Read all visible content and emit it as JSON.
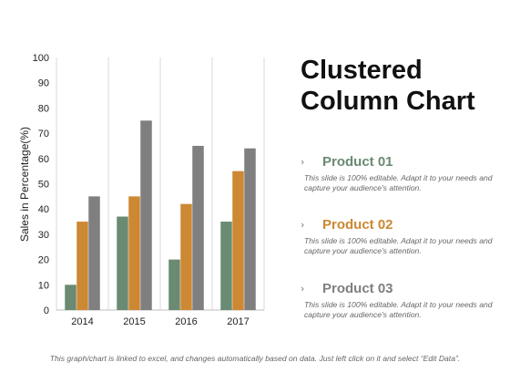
{
  "title_lines": [
    "Clustered",
    "Column Chart"
  ],
  "products": [
    {
      "label": "Product 01",
      "color": "#6a8a72",
      "description": "This slide is 100% editable. Adapt it to your needs and capture your audience's attention."
    },
    {
      "label": "Product 02",
      "color": "#cc8833",
      "description": "This slide is 100% editable. Adapt it to your needs and capture your audience's attention."
    },
    {
      "label": "Product 03",
      "color": "#7f7f7f",
      "description": "This slide is 100% editable. Adapt it to your needs and capture your audience's attention."
    }
  ],
  "icons": {
    "bullet": "chevron-right-icon"
  },
  "footer_text": "This graph/chart is linked to excel, and changes automatically based on data. Just left click on it and select “Edit Data”.",
  "chart_data": {
    "type": "bar",
    "categories": [
      "2014",
      "2015",
      "2016",
      "2017"
    ],
    "series": [
      {
        "values": [
          10,
          37,
          20,
          35
        ],
        "color": "#6a8a72"
      },
      {
        "values": [
          35,
          45,
          42,
          55
        ],
        "color": "#cc8833"
      },
      {
        "values": [
          45,
          75,
          65,
          64
        ],
        "color": "#7f7f7f"
      }
    ],
    "ylabel": "Sales in Percentage(%)",
    "xlabel": "",
    "ylim": [
      0,
      100
    ],
    "yticks": [
      0,
      10,
      20,
      30,
      40,
      50,
      60,
      70,
      80,
      90,
      100
    ],
    "grid": "vertical lines between categories",
    "legend": "none"
  }
}
